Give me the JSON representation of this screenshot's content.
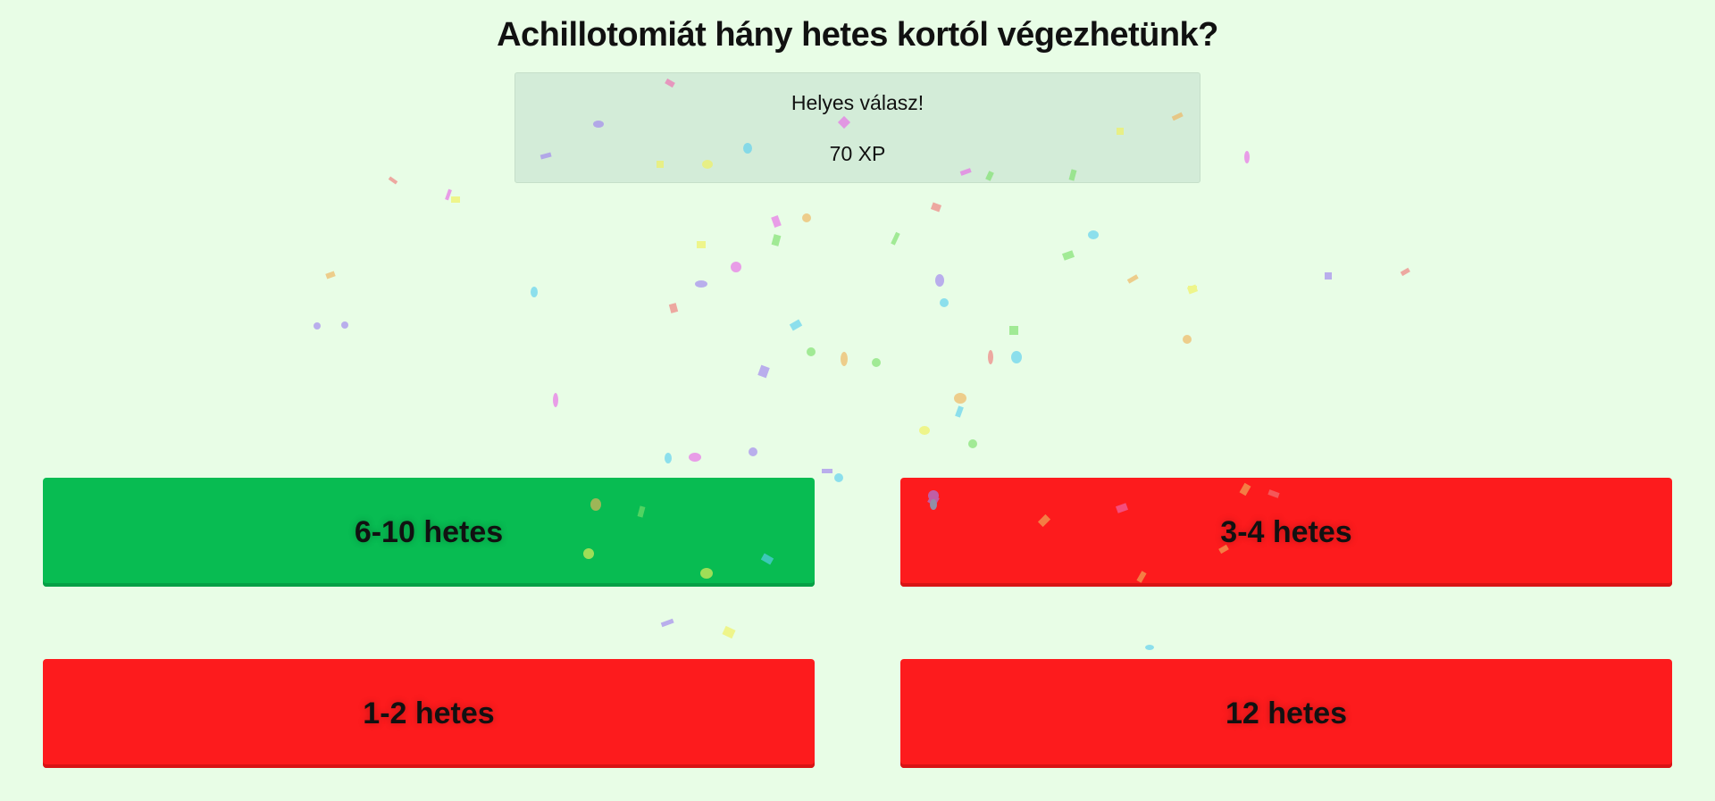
{
  "question": "Achillotomiát hány hetes kortól végezhetünk?",
  "feedback": {
    "message": "Helyes válasz!",
    "xp": "70 XP"
  },
  "answers": [
    {
      "label": "6-10 hetes",
      "state": "correct"
    },
    {
      "label": "3-4 hetes",
      "state": "wrong"
    },
    {
      "label": "1-2 hetes",
      "state": "wrong"
    },
    {
      "label": "12 hetes",
      "state": "wrong"
    }
  ],
  "colors": {
    "background": "#e8fde6",
    "correct": "#08bc52",
    "wrong": "#fd1b1d",
    "feedback_bg": "#d3ecd8"
  }
}
